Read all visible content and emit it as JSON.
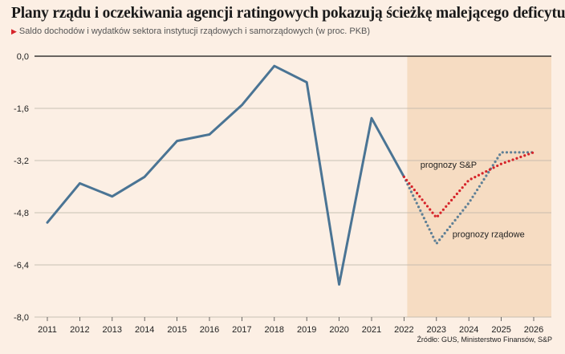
{
  "title": "Plany rządu i oczekiwania agencji ratingowych pokazują ścieżkę malejącego deficytu",
  "subtitle_marker": "▶",
  "subtitle": "Saldo dochodów i wydatków sektora instytucji rządowych i samorządowych (w proc. PKB)",
  "source": "Źródło: GUS, Ministerstwo Finansów, S&P",
  "colors": {
    "background": "#fcefe4",
    "forecast_band": "#f6dcc2",
    "actual": "#4a7494",
    "sp": "#d6242a",
    "gov": "#5f8096"
  },
  "chart_data": {
    "type": "line",
    "x": [
      2011,
      2012,
      2013,
      2014,
      2015,
      2016,
      2017,
      2018,
      2019,
      2020,
      2021,
      2022,
      2023,
      2024,
      2025,
      2026
    ],
    "ylim": [
      -8.0,
      0.0
    ],
    "yticks": [
      "0,0",
      "-1,6",
      "-3,2",
      "-4,8",
      "-6,4",
      "-8,0"
    ],
    "ytick_values": [
      0.0,
      -1.6,
      -3.2,
      -4.8,
      -6.4,
      -8.0
    ],
    "grid": true,
    "forecast_shaded_from": 2022,
    "series": [
      {
        "key": "actual",
        "style": "solid",
        "x": [
          2011,
          2012,
          2013,
          2014,
          2015,
          2016,
          2017,
          2018,
          2019,
          2020,
          2021,
          2022
        ],
        "values": [
          -5.1,
          -3.9,
          -4.3,
          -3.7,
          -2.6,
          -2.4,
          -1.5,
          -0.3,
          -0.8,
          -7.0,
          -1.9,
          -3.7
        ]
      },
      {
        "key": "sp",
        "name": "prognozy S&P",
        "style": "dotted",
        "x": [
          2022,
          2023,
          2024,
          2025,
          2026
        ],
        "values": [
          -3.7,
          -4.95,
          -3.8,
          -3.3,
          -2.95
        ]
      },
      {
        "key": "gov",
        "name": "prognozy rządowe",
        "style": "dotted",
        "x": [
          2022,
          2023,
          2024,
          2025,
          2026
        ],
        "values": [
          -3.7,
          -5.75,
          -4.5,
          -2.95,
          -2.95
        ]
      }
    ]
  }
}
